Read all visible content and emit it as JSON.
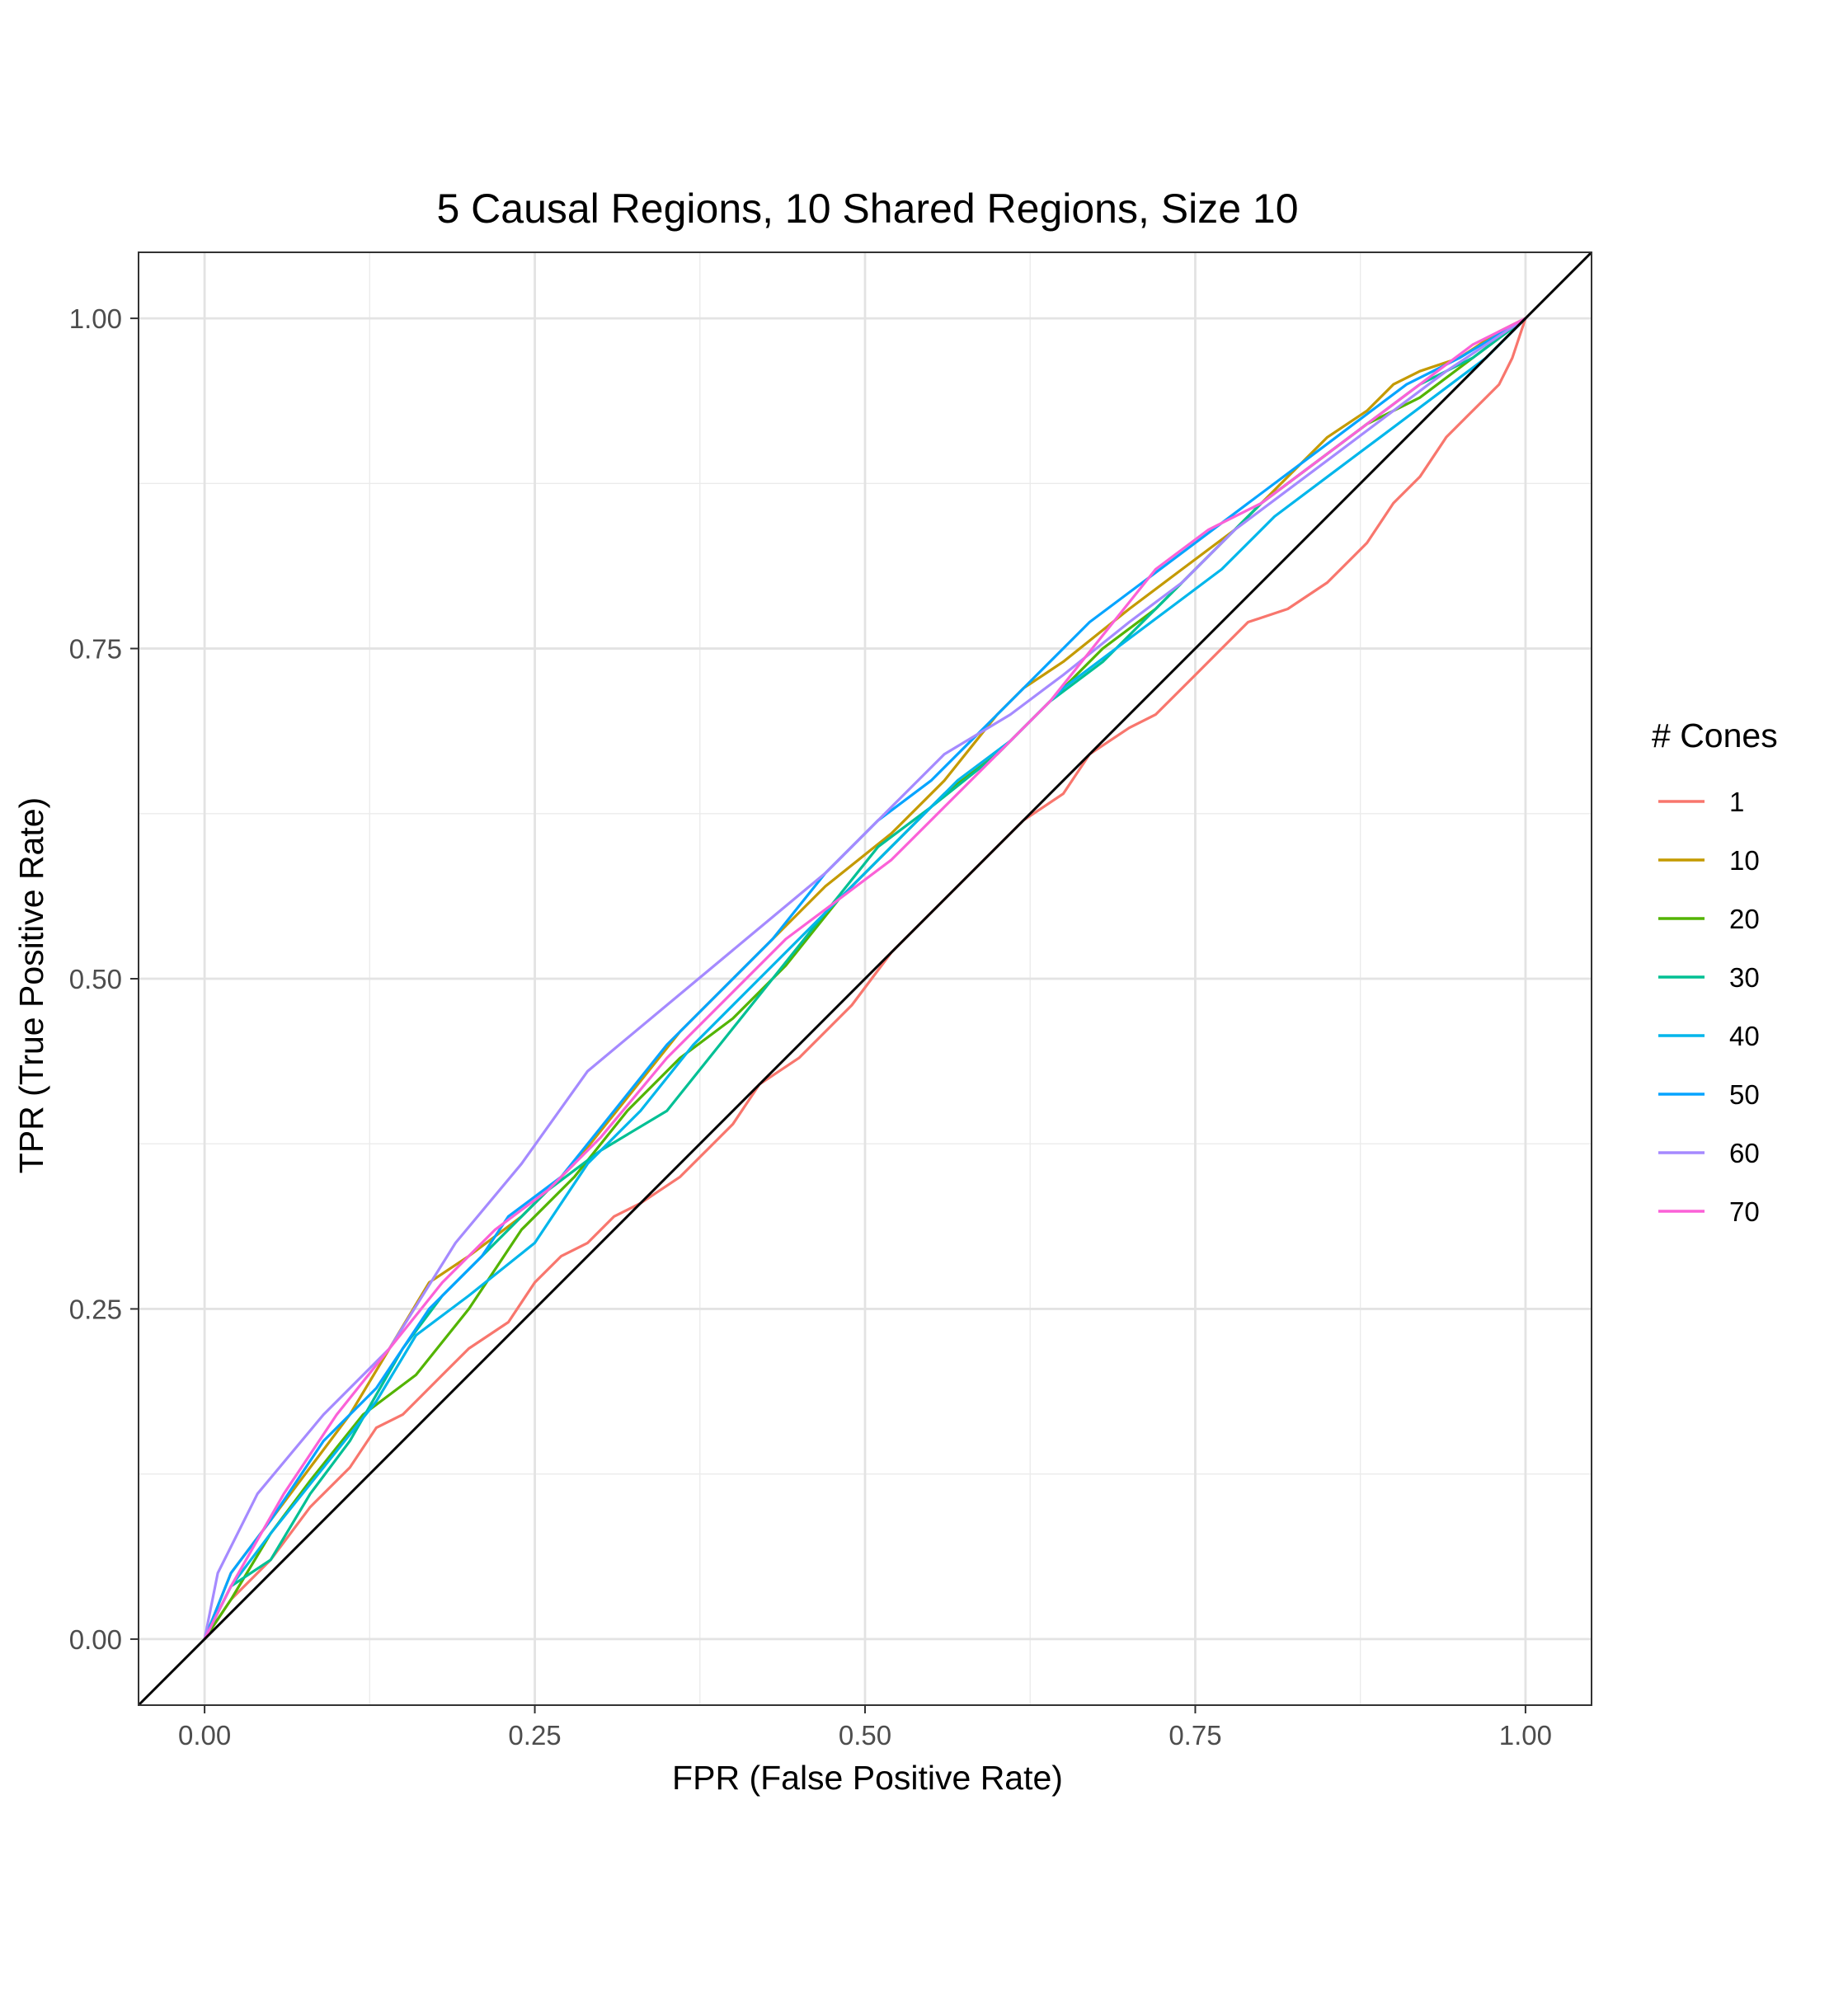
{
  "chart_data": {
    "type": "line",
    "title": "5 Causal Regions, 10 Shared Regions, Size 10",
    "xlabel": "FPR (False Positive Rate)",
    "ylabel": "TPR (True Positive Rate)",
    "xlim": [
      -0.05,
      1.05
    ],
    "ylim": [
      -0.05,
      1.05
    ],
    "x_ticks": [
      "0.00",
      "0.25",
      "0.50",
      "0.75",
      "1.00"
    ],
    "y_ticks": [
      "0.00",
      "0.25",
      "0.50",
      "0.75",
      "1.00"
    ],
    "grid": true,
    "legend": {
      "title": "# Cones",
      "position": "right"
    },
    "reference_line": {
      "from": [
        0,
        0
      ],
      "to": [
        1,
        1
      ],
      "color": "#000000"
    },
    "series": [
      {
        "name": "1",
        "color": "#F8766D",
        "points": [
          [
            0,
            0
          ],
          [
            0.02,
            0.03
          ],
          [
            0.05,
            0.06
          ],
          [
            0.08,
            0.1
          ],
          [
            0.11,
            0.13
          ],
          [
            0.13,
            0.16
          ],
          [
            0.15,
            0.17
          ],
          [
            0.18,
            0.2
          ],
          [
            0.2,
            0.22
          ],
          [
            0.23,
            0.24
          ],
          [
            0.25,
            0.27
          ],
          [
            0.27,
            0.29
          ],
          [
            0.29,
            0.3
          ],
          [
            0.31,
            0.32
          ],
          [
            0.33,
            0.33
          ],
          [
            0.36,
            0.35
          ],
          [
            0.38,
            0.37
          ],
          [
            0.4,
            0.39
          ],
          [
            0.42,
            0.42
          ],
          [
            0.45,
            0.44
          ],
          [
            0.47,
            0.46
          ],
          [
            0.49,
            0.48
          ],
          [
            0.52,
            0.52
          ],
          [
            0.55,
            0.55
          ],
          [
            0.58,
            0.58
          ],
          [
            0.6,
            0.6
          ],
          [
            0.62,
            0.62
          ],
          [
            0.65,
            0.64
          ],
          [
            0.67,
            0.67
          ],
          [
            0.7,
            0.69
          ],
          [
            0.72,
            0.7
          ],
          [
            0.75,
            0.73
          ],
          [
            0.77,
            0.75
          ],
          [
            0.79,
            0.77
          ],
          [
            0.82,
            0.78
          ],
          [
            0.85,
            0.8
          ],
          [
            0.88,
            0.83
          ],
          [
            0.9,
            0.86
          ],
          [
            0.92,
            0.88
          ],
          [
            0.94,
            0.91
          ],
          [
            0.96,
            0.93
          ],
          [
            0.97,
            0.94
          ],
          [
            0.98,
            0.95
          ],
          [
            0.99,
            0.97
          ],
          [
            1.0,
            1.0
          ]
        ]
      },
      {
        "name": "10",
        "color": "#C49A00",
        "points": [
          [
            0,
            0
          ],
          [
            0.02,
            0.05
          ],
          [
            0.05,
            0.09
          ],
          [
            0.08,
            0.13
          ],
          [
            0.11,
            0.17
          ],
          [
            0.14,
            0.22
          ],
          [
            0.17,
            0.27
          ],
          [
            0.2,
            0.29
          ],
          [
            0.24,
            0.32
          ],
          [
            0.28,
            0.36
          ],
          [
            0.32,
            0.41
          ],
          [
            0.36,
            0.46
          ],
          [
            0.4,
            0.5
          ],
          [
            0.44,
            0.54
          ],
          [
            0.47,
            0.57
          ],
          [
            0.52,
            0.61
          ],
          [
            0.56,
            0.65
          ],
          [
            0.6,
            0.7
          ],
          [
            0.62,
            0.72
          ],
          [
            0.65,
            0.74
          ],
          [
            0.7,
            0.78
          ],
          [
            0.74,
            0.81
          ],
          [
            0.78,
            0.84
          ],
          [
            0.82,
            0.88
          ],
          [
            0.85,
            0.91
          ],
          [
            0.88,
            0.93
          ],
          [
            0.9,
            0.95
          ],
          [
            0.92,
            0.96
          ],
          [
            0.95,
            0.97
          ],
          [
            0.98,
            0.99
          ],
          [
            1.0,
            1.0
          ]
        ]
      },
      {
        "name": "20",
        "color": "#53B400",
        "points": [
          [
            0,
            0
          ],
          [
            0.02,
            0.03
          ],
          [
            0.05,
            0.08
          ],
          [
            0.08,
            0.12
          ],
          [
            0.12,
            0.17
          ],
          [
            0.16,
            0.2
          ],
          [
            0.2,
            0.25
          ],
          [
            0.24,
            0.31
          ],
          [
            0.28,
            0.35
          ],
          [
            0.32,
            0.4
          ],
          [
            0.36,
            0.44
          ],
          [
            0.4,
            0.47
          ],
          [
            0.44,
            0.51
          ],
          [
            0.48,
            0.56
          ],
          [
            0.52,
            0.6
          ],
          [
            0.56,
            0.64
          ],
          [
            0.6,
            0.67
          ],
          [
            0.64,
            0.71
          ],
          [
            0.68,
            0.75
          ],
          [
            0.72,
            0.78
          ],
          [
            0.76,
            0.82
          ],
          [
            0.8,
            0.86
          ],
          [
            0.84,
            0.89
          ],
          [
            0.88,
            0.92
          ],
          [
            0.92,
            0.94
          ],
          [
            0.96,
            0.97
          ],
          [
            1.0,
            1.0
          ]
        ]
      },
      {
        "name": "30",
        "color": "#00C094",
        "points": [
          [
            0,
            0
          ],
          [
            0.02,
            0.04
          ],
          [
            0.05,
            0.06
          ],
          [
            0.08,
            0.11
          ],
          [
            0.11,
            0.15
          ],
          [
            0.15,
            0.22
          ],
          [
            0.18,
            0.26
          ],
          [
            0.22,
            0.3
          ],
          [
            0.26,
            0.34
          ],
          [
            0.3,
            0.37
          ],
          [
            0.35,
            0.4
          ],
          [
            0.39,
            0.45
          ],
          [
            0.43,
            0.5
          ],
          [
            0.47,
            0.55
          ],
          [
            0.51,
            0.6
          ],
          [
            0.55,
            0.63
          ],
          [
            0.6,
            0.67
          ],
          [
            0.64,
            0.71
          ],
          [
            0.68,
            0.74
          ],
          [
            0.72,
            0.78
          ],
          [
            0.76,
            0.82
          ],
          [
            0.8,
            0.86
          ],
          [
            0.84,
            0.89
          ],
          [
            0.88,
            0.92
          ],
          [
            0.92,
            0.95
          ],
          [
            0.96,
            0.97
          ],
          [
            1.0,
            1.0
          ]
        ]
      },
      {
        "name": "40",
        "color": "#00B6EB",
        "points": [
          [
            0,
            0
          ],
          [
            0.02,
            0.04
          ],
          [
            0.05,
            0.08
          ],
          [
            0.09,
            0.13
          ],
          [
            0.13,
            0.18
          ],
          [
            0.16,
            0.23
          ],
          [
            0.2,
            0.26
          ],
          [
            0.25,
            0.3
          ],
          [
            0.29,
            0.36
          ],
          [
            0.33,
            0.4
          ],
          [
            0.37,
            0.45
          ],
          [
            0.41,
            0.49
          ],
          [
            0.45,
            0.53
          ],
          [
            0.49,
            0.57
          ],
          [
            0.53,
            0.61
          ],
          [
            0.57,
            0.65
          ],
          [
            0.61,
            0.68
          ],
          [
            0.65,
            0.72
          ],
          [
            0.69,
            0.75
          ],
          [
            0.73,
            0.78
          ],
          [
            0.77,
            0.81
          ],
          [
            0.81,
            0.85
          ],
          [
            0.85,
            0.88
          ],
          [
            0.89,
            0.91
          ],
          [
            0.93,
            0.94
          ],
          [
            0.97,
            0.97
          ],
          [
            1.0,
            1.0
          ]
        ]
      },
      {
        "name": "50",
        "color": "#06A4FF",
        "points": [
          [
            0,
            0
          ],
          [
            0.02,
            0.05
          ],
          [
            0.05,
            0.09
          ],
          [
            0.09,
            0.15
          ],
          [
            0.13,
            0.19
          ],
          [
            0.17,
            0.25
          ],
          [
            0.21,
            0.29
          ],
          [
            0.23,
            0.32
          ],
          [
            0.27,
            0.35
          ],
          [
            0.31,
            0.4
          ],
          [
            0.35,
            0.45
          ],
          [
            0.39,
            0.49
          ],
          [
            0.43,
            0.53
          ],
          [
            0.47,
            0.58
          ],
          [
            0.51,
            0.62
          ],
          [
            0.55,
            0.65
          ],
          [
            0.59,
            0.69
          ],
          [
            0.63,
            0.73
          ],
          [
            0.67,
            0.77
          ],
          [
            0.71,
            0.8
          ],
          [
            0.75,
            0.83
          ],
          [
            0.79,
            0.86
          ],
          [
            0.83,
            0.89
          ],
          [
            0.87,
            0.92
          ],
          [
            0.91,
            0.95
          ],
          [
            0.95,
            0.97
          ],
          [
            1.0,
            1.0
          ]
        ]
      },
      {
        "name": "60",
        "color": "#A58AFF",
        "points": [
          [
            0,
            0
          ],
          [
            0.01,
            0.05
          ],
          [
            0.04,
            0.11
          ],
          [
            0.09,
            0.17
          ],
          [
            0.14,
            0.22
          ],
          [
            0.19,
            0.3
          ],
          [
            0.24,
            0.36
          ],
          [
            0.29,
            0.43
          ],
          [
            0.35,
            0.48
          ],
          [
            0.41,
            0.53
          ],
          [
            0.47,
            0.58
          ],
          [
            0.52,
            0.63
          ],
          [
            0.56,
            0.67
          ],
          [
            0.61,
            0.7
          ],
          [
            0.65,
            0.73
          ],
          [
            0.7,
            0.77
          ],
          [
            0.74,
            0.8
          ],
          [
            0.78,
            0.84
          ],
          [
            0.82,
            0.87
          ],
          [
            0.86,
            0.9
          ],
          [
            0.9,
            0.93
          ],
          [
            0.94,
            0.96
          ],
          [
            0.97,
            0.98
          ],
          [
            1.0,
            1.0
          ]
        ]
      },
      {
        "name": "70",
        "color": "#FB61D7",
        "points": [
          [
            0,
            0
          ],
          [
            0.02,
            0.04
          ],
          [
            0.06,
            0.11
          ],
          [
            0.1,
            0.17
          ],
          [
            0.14,
            0.22
          ],
          [
            0.18,
            0.27
          ],
          [
            0.22,
            0.31
          ],
          [
            0.26,
            0.34
          ],
          [
            0.3,
            0.38
          ],
          [
            0.35,
            0.44
          ],
          [
            0.4,
            0.49
          ],
          [
            0.44,
            0.53
          ],
          [
            0.48,
            0.56
          ],
          [
            0.52,
            0.59
          ],
          [
            0.56,
            0.63
          ],
          [
            0.6,
            0.67
          ],
          [
            0.64,
            0.71
          ],
          [
            0.68,
            0.76
          ],
          [
            0.72,
            0.81
          ],
          [
            0.76,
            0.84
          ],
          [
            0.8,
            0.86
          ],
          [
            0.84,
            0.89
          ],
          [
            0.88,
            0.92
          ],
          [
            0.92,
            0.95
          ],
          [
            0.96,
            0.98
          ],
          [
            1.0,
            1.0
          ]
        ]
      }
    ]
  }
}
